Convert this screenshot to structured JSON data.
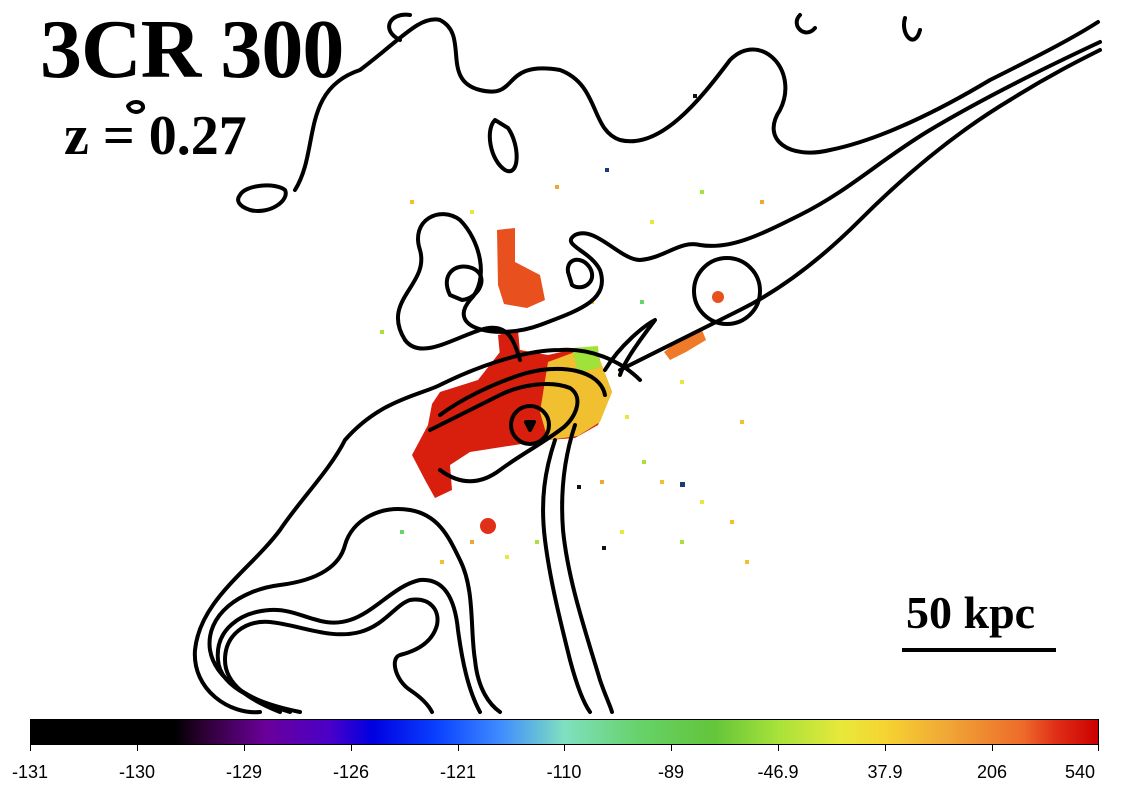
{
  "figure": {
    "title": "3CR 300",
    "redshift": "z = 0.27",
    "scale_bar_label": "50 kpc"
  },
  "colorbar": {
    "ticks": [
      "-131",
      "-130",
      "-129",
      "-126",
      "-121",
      "-110",
      "-89",
      "-46.9",
      "37.9",
      "206",
      "540"
    ],
    "colors": {
      "low": "#000000",
      "mid_low": "#0000e0",
      "mid": "#66d26a",
      "mid_high": "#f6d432",
      "high": "#cc0000"
    }
  }
}
